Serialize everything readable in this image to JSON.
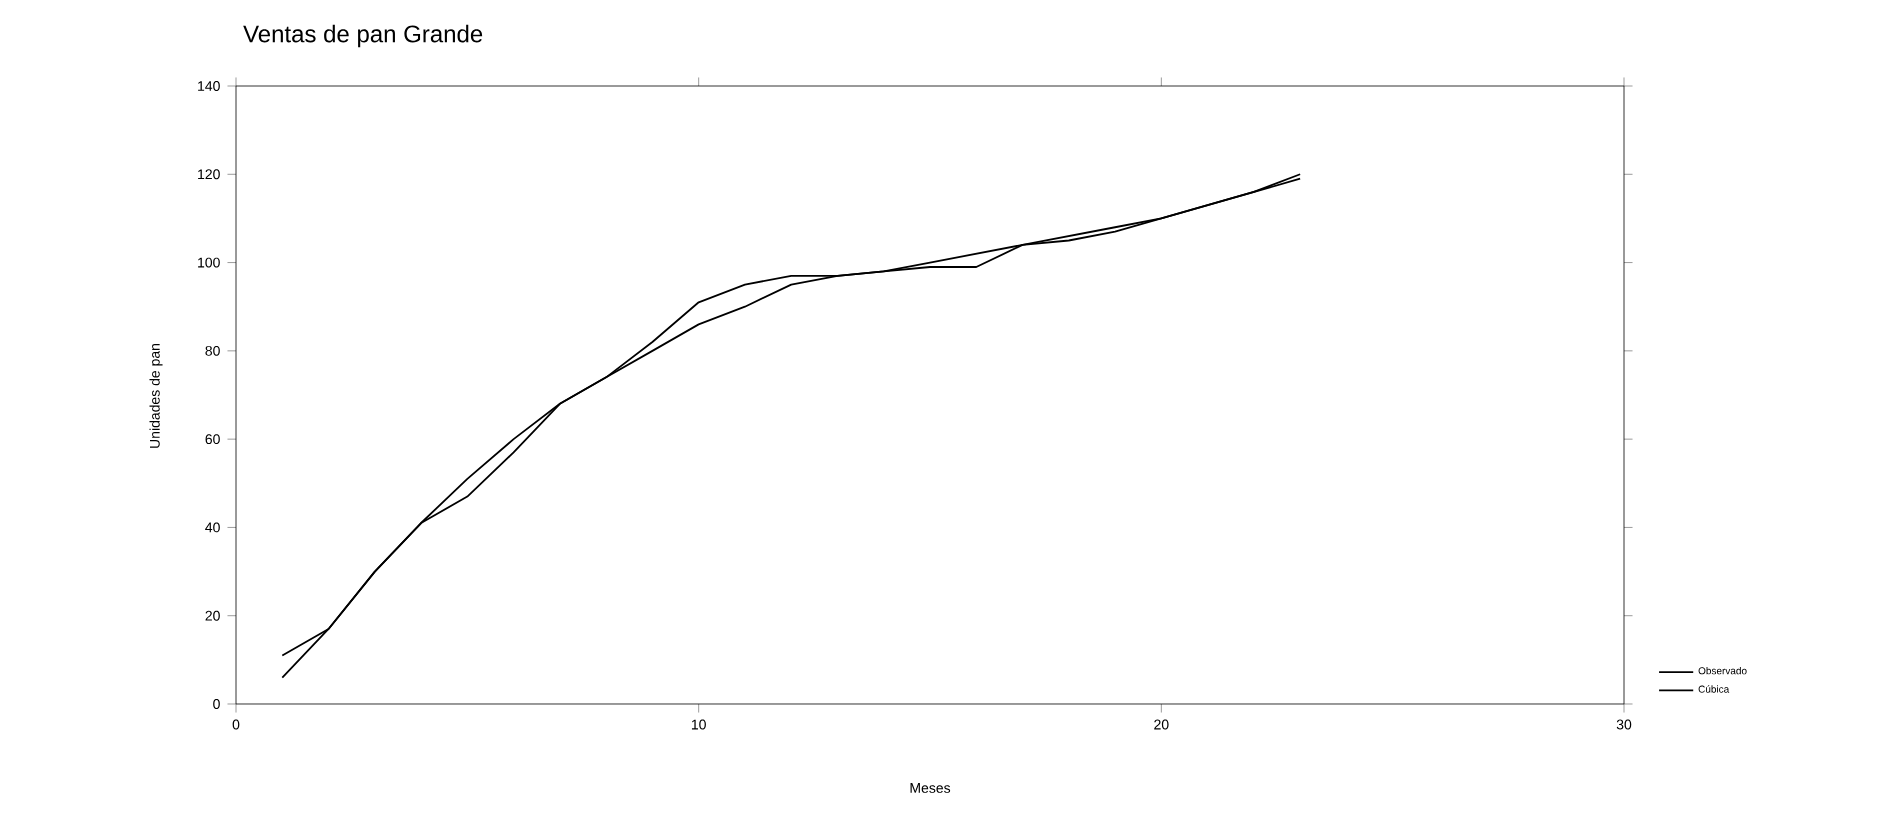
{
  "chart_data": {
    "type": "line",
    "title": "Ventas de pan Grande",
    "xlabel": "Meses",
    "ylabel": "Unidades de pan",
    "x": [
      1,
      2,
      3,
      4,
      5,
      6,
      7,
      8,
      9,
      10,
      11,
      12,
      13,
      14,
      15,
      16,
      17,
      18,
      19,
      20,
      21,
      22,
      23
    ],
    "series": [
      {
        "name": "Observado",
        "color": "#000000",
        "values": [
          11,
          17,
          30,
          41,
          47,
          57,
          68,
          74,
          82,
          91,
          95,
          97,
          97,
          98,
          99,
          99,
          104,
          105,
          107,
          110,
          113,
          116,
          120
        ]
      },
      {
        "name": "Cúbica",
        "color": "#000000",
        "values": [
          6,
          17,
          30,
          41,
          51,
          60,
          68,
          74,
          80,
          86,
          90,
          95,
          97,
          98,
          100,
          102,
          104,
          106,
          108,
          110,
          113,
          116,
          119
        ]
      }
    ],
    "xlim": [
      0,
      30
    ],
    "xticks": [
      0,
      10,
      20,
      30
    ],
    "ylim": [
      0,
      140
    ],
    "yticks": [
      0,
      20,
      40,
      60,
      80,
      100,
      120,
      140
    ],
    "grid": false,
    "legend": "bottom right",
    "marker": "none",
    "line_style": "solid"
  }
}
